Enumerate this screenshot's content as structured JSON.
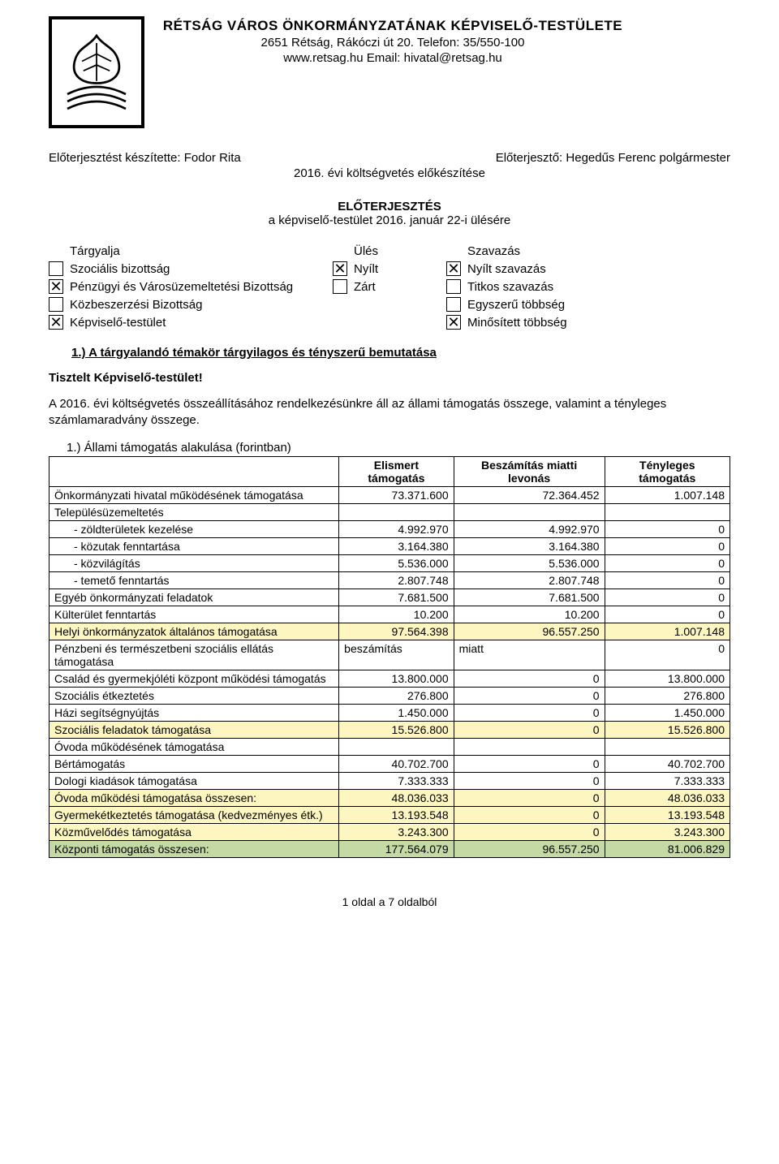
{
  "header": {
    "title": "RÉTSÁG VÁROS ÖNKORMÁNYZATÁNAK KÉPVISELŐ-TESTÜLETE",
    "address": "2651 Rétság, Rákóczi út 20. Telefon: 35/550-100",
    "contact": "www.retsag.hu  Email: hivatal@retsag.hu"
  },
  "intro": {
    "prepared_by_label": "Előterjesztést készítette: Fodor Rita",
    "presenter_label": "Előterjesztő: Hegedűs Ferenc polgármester",
    "budget_line": "2016. évi költségvetés előkészítése",
    "proposal_title": "ELŐTERJESZTÉS",
    "proposal_sub": "a képviselő-testület 2016. január 22-i ülésére"
  },
  "checkbox": {
    "col_targyalja": "Tárgyalja",
    "col_ules": "Ülés",
    "col_szavazas": "Szavazás",
    "rows": [
      {
        "a_chk": false,
        "a": "Szociális bizottság",
        "b_chk": true,
        "b": "Nyílt",
        "c_chk": true,
        "c": "Nyílt szavazás"
      },
      {
        "a_chk": true,
        "a": "Pénzügyi és Városüzemeltetési Bizottság",
        "b_chk": false,
        "b": "Zárt",
        "c_chk": false,
        "c": "Titkos szavazás"
      },
      {
        "a_chk": false,
        "a": "Közbeszerzési Bizottság",
        "b_chk": null,
        "b": "",
        "c_chk": false,
        "c": "Egyszerű többség"
      },
      {
        "a_chk": true,
        "a": "Képviselő-testület",
        "b_chk": null,
        "b": "",
        "c_chk": true,
        "c": "Minősített többség"
      }
    ]
  },
  "section1_title": "1.)  A tárgyalandó témakör tárgyilagos és tényszerű bemutatása",
  "salutation": "Tisztelt Képviselő-testület!",
  "paragraph": "A 2016. évi költségvetés összeállításához rendelkezésünkre áll az állami támogatás összege, valamint a tényleges számlamaradvány összege.",
  "subhead": "1.) Állami támogatás alakulása (forintban)",
  "table": {
    "head": {
      "c1": "",
      "c2": "Elismert támogatás",
      "c3": "Beszámítás miatti levonás",
      "c4": "Tényleges támogatás"
    },
    "rows": [
      {
        "hl": "",
        "label": "Önkormányzati hivatal működésének támogatása",
        "indent": 0,
        "c2": "73.371.600",
        "c3": "72.364.452",
        "c4": "1.007.148"
      },
      {
        "hl": "",
        "label": "Településüzemeltetés",
        "indent": 0,
        "c2": "",
        "c3": "",
        "c4": ""
      },
      {
        "hl": "",
        "label": "-    zöldterületek kezelése",
        "indent": 1,
        "c2": "4.992.970",
        "c3": "4.992.970",
        "c4": "0"
      },
      {
        "hl": "",
        "label": "-    közutak fenntartása",
        "indent": 1,
        "c2": "3.164.380",
        "c3": "3.164.380",
        "c4": "0"
      },
      {
        "hl": "",
        "label": "-    közvilágítás",
        "indent": 1,
        "c2": "5.536.000",
        "c3": "5.536.000",
        "c4": "0"
      },
      {
        "hl": "",
        "label": "-    temető fenntartás",
        "indent": 1,
        "c2": "2.807.748",
        "c3": "2.807.748",
        "c4": "0"
      },
      {
        "hl": "",
        "label": "Egyéb önkormányzati feladatok",
        "indent": 0,
        "c2": "7.681.500",
        "c3": "7.681.500",
        "c4": "0"
      },
      {
        "hl": "",
        "label": "Külterület fenntartás",
        "indent": 0,
        "c2": "10.200",
        "c3": "10.200",
        "c4": "0"
      },
      {
        "hl": "yellow",
        "label": "Helyi önkormányzatok általános támogatása",
        "indent": 0,
        "c2": "97.564.398",
        "c3": "96.557.250",
        "c4": "1.007.148"
      },
      {
        "hl": "",
        "label": "Pénzbeni és természetbeni szociális ellátás támogatása",
        "indent": 0,
        "c2": "beszámítás",
        "c3": "miatt",
        "c4": "0"
      },
      {
        "hl": "",
        "label": "Család és gyermekjóléti központ működési támogatás",
        "indent": 0,
        "c2": "13.800.000",
        "c3": "0",
        "c4": "13.800.000"
      },
      {
        "hl": "",
        "label": "Szociális étkeztetés",
        "indent": 0,
        "c2": "276.800",
        "c3": "0",
        "c4": "276.800"
      },
      {
        "hl": "",
        "label": "Házi segítségnyújtás",
        "indent": 0,
        "c2": "1.450.000",
        "c3": "0",
        "c4": "1.450.000"
      },
      {
        "hl": "yellow",
        "label": "Szociális feladatok támogatása",
        "indent": 0,
        "c2": "15.526.800",
        "c3": "0",
        "c4": "15.526.800"
      },
      {
        "hl": "",
        "label": "Óvoda működésének támogatása",
        "indent": 0,
        "c2": "",
        "c3": "",
        "c4": ""
      },
      {
        "hl": "",
        "label": "Bértámogatás",
        "indent": 0,
        "c2": "40.702.700",
        "c3": "0",
        "c4": "40.702.700"
      },
      {
        "hl": "",
        "label": "Dologi kiadások támogatása",
        "indent": 0,
        "c2": "7.333.333",
        "c3": "0",
        "c4": "7.333.333"
      },
      {
        "hl": "yellow",
        "label": "Óvoda működési támogatása összesen:",
        "indent": 0,
        "c2": "48.036.033",
        "c3": "0",
        "c4": "48.036.033"
      },
      {
        "hl": "yellow",
        "label": "Gyermekétkeztetés támogatása (kedvezményes étk.)",
        "indent": 0,
        "c2": "13.193.548",
        "c3": "0",
        "c4": "13.193.548"
      },
      {
        "hl": "yellow",
        "label": "Közművelődés támogatása",
        "indent": 0,
        "c2": "3.243.300",
        "c3": "0",
        "c4": "3.243.300"
      },
      {
        "hl": "green",
        "label": "Központi támogatás összesen:",
        "indent": 0,
        "c2": "177.564.079",
        "c3": "96.557.250",
        "c4": "81.006.829"
      }
    ]
  },
  "footer": "1 oldal a 7 oldalból"
}
